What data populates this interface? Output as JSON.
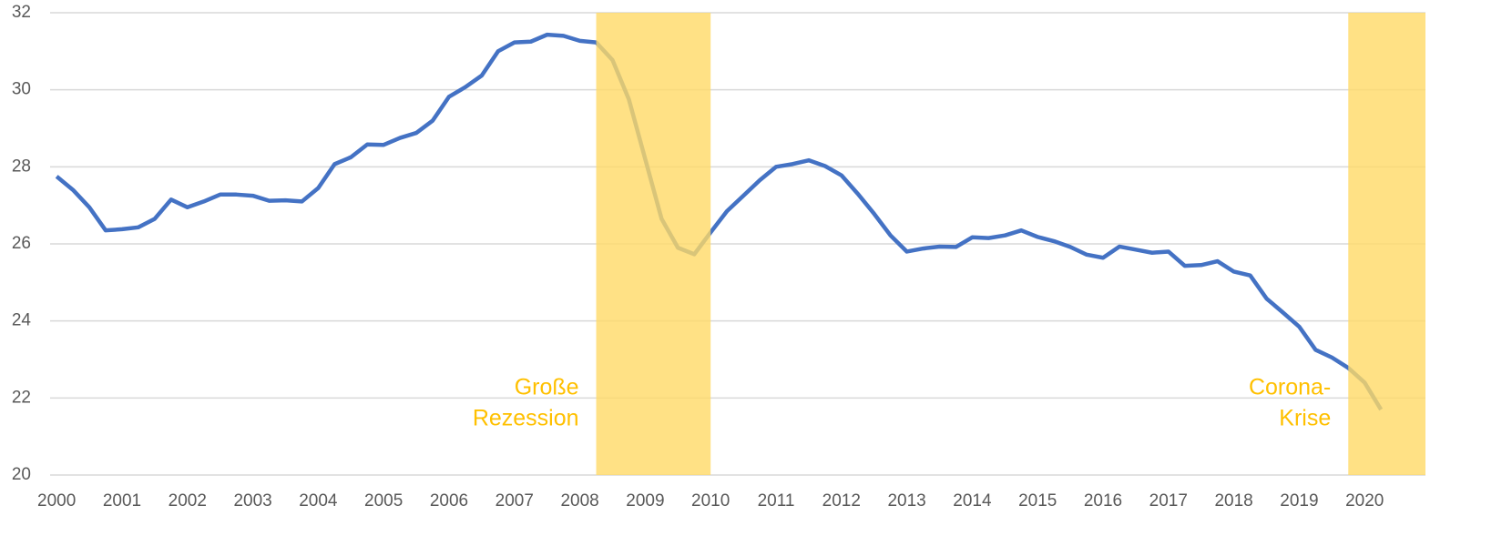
{
  "chart_data": {
    "type": "line",
    "x": [
      2000,
      2000.25,
      2000.5,
      2000.75,
      2001,
      2001.25,
      2001.5,
      2001.75,
      2002,
      2002.25,
      2002.5,
      2002.75,
      2003,
      2003.25,
      2003.5,
      2003.75,
      2004,
      2004.25,
      2004.5,
      2004.75,
      2005,
      2005.25,
      2005.5,
      2005.75,
      2006,
      2006.25,
      2006.5,
      2006.75,
      2007,
      2007.25,
      2007.5,
      2007.75,
      2008,
      2008.25,
      2008.5,
      2008.75,
      2009,
      2009.25,
      2009.5,
      2009.75,
      2010,
      2010.25,
      2010.5,
      2010.75,
      2011,
      2011.25,
      2011.5,
      2011.75,
      2012,
      2012.25,
      2012.5,
      2012.75,
      2013,
      2013.25,
      2013.5,
      2013.75,
      2014,
      2014.25,
      2014.5,
      2014.75,
      2015,
      2015.25,
      2015.5,
      2015.75,
      2016,
      2016.25,
      2016.5,
      2016.75,
      2017,
      2017.25,
      2017.5,
      2017.75,
      2018,
      2018.25,
      2018.5,
      2018.75,
      2019,
      2019.25,
      2019.5,
      2019.75,
      2020,
      2020.25
    ],
    "values": [
      27.75,
      27.4,
      26.95,
      26.35,
      26.38,
      26.43,
      26.65,
      27.15,
      26.95,
      27.1,
      27.28,
      27.28,
      27.25,
      27.12,
      27.13,
      27.1,
      27.45,
      28.07,
      28.25,
      28.58,
      28.57,
      28.75,
      28.88,
      29.2,
      29.82,
      30.07,
      30.37,
      31.0,
      31.23,
      31.25,
      31.43,
      31.4,
      31.27,
      31.23,
      30.77,
      29.75,
      28.2,
      26.65,
      25.9,
      25.73,
      26.3,
      26.85,
      27.25,
      27.65,
      28.0,
      28.07,
      28.17,
      28.02,
      27.78,
      27.3,
      26.78,
      26.22,
      25.8,
      25.88,
      25.93,
      25.92,
      26.17,
      26.15,
      26.22,
      26.35,
      26.18,
      26.07,
      25.92,
      25.72,
      25.64,
      25.93,
      25.85,
      25.77,
      25.8,
      25.43,
      25.45,
      25.55,
      25.28,
      25.18,
      24.58,
      24.22,
      23.85,
      23.25,
      23.05,
      22.78,
      22.4,
      21.7
    ],
    "color": "#4472c4",
    "xlim": [
      1999.9,
      2020.93
    ],
    "xticks": [
      2000,
      2001,
      2002,
      2003,
      2004,
      2005,
      2006,
      2007,
      2008,
      2009,
      2010,
      2011,
      2012,
      2013,
      2014,
      2015,
      2016,
      2017,
      2018,
      2019,
      2020
    ],
    "ylim": [
      20,
      32
    ],
    "yticks": [
      20,
      22,
      24,
      26,
      28,
      30,
      32
    ],
    "grid": true,
    "shaded_regions": [
      {
        "x": [
          2008.25,
          2010
        ],
        "label": [
          "Große",
          "Rezession"
        ],
        "color": "#ffd966"
      },
      {
        "x": [
          2019.75,
          2020.93
        ],
        "label": [
          "Corona-",
          "Krise"
        ],
        "color": "#ffd966"
      }
    ]
  }
}
